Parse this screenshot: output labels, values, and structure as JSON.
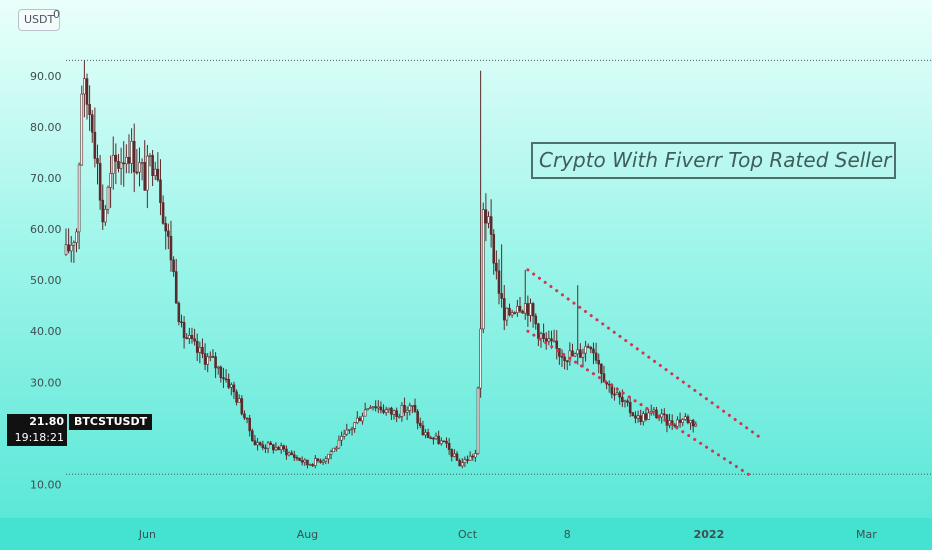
{
  "price_scale": {
    "unit_label": "USDT",
    "unit_extra": "0"
  },
  "last_price": {
    "value": "21.80",
    "countdown": "19:18:21",
    "symbol": "BTCSTUSDT"
  },
  "annotation": {
    "text": "Crypto With Fiverr Top Rated Seller"
  },
  "colors": {
    "candle": "#5b2a2a",
    "channel": "#d03650",
    "hline": "#4a5560",
    "label": "#3f4e50"
  },
  "chart_data": {
    "type": "candlestick",
    "symbol": "BTCSTUSDT",
    "title": "",
    "ylabel": "USDT",
    "ylim": [
      5,
      97
    ],
    "y_ticks": [
      10,
      20,
      30,
      40,
      50,
      60,
      70,
      80,
      90
    ],
    "y_tick_labels": [
      "10.00",
      "20.00",
      "30.00",
      "40.00",
      "50.00",
      "60.00",
      "70.00",
      "80.00",
      "90.00"
    ],
    "x_tick_labels": [
      "Jun",
      "Aug",
      "Oct",
      "8",
      "2022",
      "Mar"
    ],
    "x_tick_days": [
      31,
      92,
      153,
      191,
      245,
      305
    ],
    "x_range_days": [
      0,
      330
    ],
    "horizontal_lines": [
      93,
      12
    ],
    "channel_upper": [
      {
        "day": 176,
        "price": 52
      },
      {
        "day": 265,
        "price": 19
      }
    ],
    "channel_lower": [
      {
        "day": 176,
        "price": 40
      },
      {
        "day": 260,
        "price": 12
      }
    ],
    "price_path": [
      {
        "day": 0,
        "price": 55
      },
      {
        "day": 4,
        "price": 60
      },
      {
        "day": 6,
        "price": 88
      },
      {
        "day": 10,
        "price": 82
      },
      {
        "day": 14,
        "price": 62
      },
      {
        "day": 18,
        "price": 72
      },
      {
        "day": 24,
        "price": 76
      },
      {
        "day": 30,
        "price": 70
      },
      {
        "day": 34,
        "price": 75
      },
      {
        "day": 38,
        "price": 60
      },
      {
        "day": 40,
        "price": 55
      },
      {
        "day": 44,
        "price": 40
      },
      {
        "day": 50,
        "price": 36
      },
      {
        "day": 56,
        "price": 34
      },
      {
        "day": 62,
        "price": 30
      },
      {
        "day": 66,
        "price": 26
      },
      {
        "day": 72,
        "price": 18
      },
      {
        "day": 82,
        "price": 17
      },
      {
        "day": 92,
        "price": 14
      },
      {
        "day": 98,
        "price": 15
      },
      {
        "day": 104,
        "price": 18
      },
      {
        "day": 110,
        "price": 22
      },
      {
        "day": 116,
        "price": 26
      },
      {
        "day": 124,
        "price": 24
      },
      {
        "day": 132,
        "price": 25
      },
      {
        "day": 136,
        "price": 20
      },
      {
        "day": 144,
        "price": 18
      },
      {
        "day": 150,
        "price": 14
      },
      {
        "day": 156,
        "price": 16
      },
      {
        "day": 158,
        "price": 40
      },
      {
        "day": 159,
        "price": 65
      },
      {
        "day": 163,
        "price": 55
      },
      {
        "day": 167,
        "price": 42
      },
      {
        "day": 172,
        "price": 46
      },
      {
        "day": 176,
        "price": 45
      },
      {
        "day": 182,
        "price": 38
      },
      {
        "day": 188,
        "price": 36
      },
      {
        "day": 194,
        "price": 35
      },
      {
        "day": 200,
        "price": 38
      },
      {
        "day": 206,
        "price": 30
      },
      {
        "day": 212,
        "price": 26
      },
      {
        "day": 218,
        "price": 23
      },
      {
        "day": 224,
        "price": 24
      },
      {
        "day": 230,
        "price": 22
      },
      {
        "day": 236,
        "price": 23
      },
      {
        "day": 240,
        "price": 21.8
      }
    ],
    "peaks": [
      {
        "day": 7,
        "high": 93
      },
      {
        "day": 158,
        "high": 91
      },
      {
        "day": 160,
        "high": 67
      },
      {
        "day": 166,
        "high": 57
      },
      {
        "day": 175,
        "high": 52
      },
      {
        "day": 195,
        "high": 49
      }
    ],
    "last_price": 21.8
  }
}
